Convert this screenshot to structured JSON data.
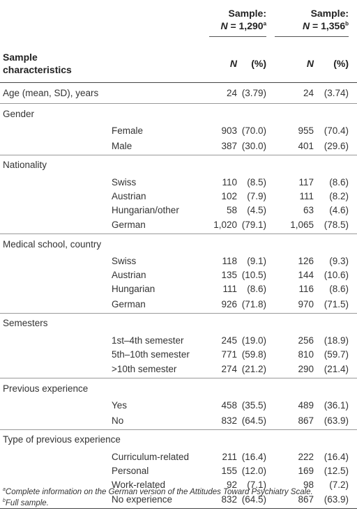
{
  "header": {
    "group1_line1": "Sample:",
    "group1_n": "N",
    "group1_value": " = 1,290",
    "group1_sup": "a",
    "group2_line1": "Sample:",
    "group2_n": "N",
    "group2_value": " = 1,356",
    "group2_sup": "b",
    "row_label_line1": "Sample",
    "row_label_line2": "characteristics",
    "col_n": "N",
    "col_pct": "(%)"
  },
  "age": {
    "label": "Age (mean, SD), years",
    "n1": "24",
    "p1": "(3.79)",
    "n2": "24",
    "p2": "(3.74)"
  },
  "sections": [
    {
      "label": "Gender",
      "rows": [
        {
          "label": "Female",
          "n1": "903",
          "p1": "(70.0)",
          "n2": "955",
          "p2": "(70.4)"
        },
        {
          "label": "Male",
          "n1": "387",
          "p1": "(30.0)",
          "n2": "401",
          "p2": "(29.6)"
        }
      ]
    },
    {
      "label": "Nationality",
      "rows": [
        {
          "label": "Swiss",
          "n1": "110",
          "p1": "(8.5)",
          "n2": "117",
          "p2": "(8.6)"
        },
        {
          "label": "Austrian",
          "n1": "102",
          "p1": "(7.9)",
          "n2": "111",
          "p2": "(8.2)"
        },
        {
          "label": "Hungarian/other",
          "n1": "58",
          "p1": "(4.5)",
          "n2": "63",
          "p2": "(4.6)"
        },
        {
          "label": "German",
          "n1": "1,020",
          "p1": "(79.1)",
          "n2": "1,065",
          "p2": "(78.5)"
        }
      ]
    },
    {
      "label": "Medical school, country",
      "rows": [
        {
          "label": "Swiss",
          "n1": "118",
          "p1": "(9.1)",
          "n2": "126",
          "p2": "(9.3)"
        },
        {
          "label": "Austrian",
          "n1": "135",
          "p1": "(10.5)",
          "n2": "144",
          "p2": "(10.6)"
        },
        {
          "label": "Hungarian",
          "n1": "111",
          "p1": "(8.6)",
          "n2": "116",
          "p2": "(8.6)"
        },
        {
          "label": "German",
          "n1": "926",
          "p1": "(71.8)",
          "n2": "970",
          "p2": "(71.5)"
        }
      ]
    },
    {
      "label": "Semesters",
      "rows": [
        {
          "label": "1st–4th semester",
          "n1": "245",
          "p1": "(19.0)",
          "n2": "256",
          "p2": "(18.9)"
        },
        {
          "label": "5th–10th semester",
          "n1": "771",
          "p1": "(59.8)",
          "n2": "810",
          "p2": "(59.7)"
        },
        {
          "label": ">10th semester",
          "n1": "274",
          "p1": "(21.2)",
          "n2": "290",
          "p2": "(21.4)"
        }
      ]
    },
    {
      "label": "Previous experience",
      "rows": [
        {
          "label": "Yes",
          "n1": "458",
          "p1": "(35.5)",
          "n2": "489",
          "p2": "(36.1)"
        },
        {
          "label": "No",
          "n1": "832",
          "p1": "(64.5)",
          "n2": "867",
          "p2": "(63.9)"
        }
      ]
    },
    {
      "label": "Type of previous experience",
      "rows": [
        {
          "label": "Curriculum-related",
          "n1": "211",
          "p1": "(16.4)",
          "n2": "222",
          "p2": "(16.4)"
        },
        {
          "label": "Personal",
          "n1": "155",
          "p1": "(12.0)",
          "n2": "169",
          "p2": "(12.5)"
        },
        {
          "label": "Work-related",
          "n1": "92",
          "p1": "(7.1)",
          "n2": "98",
          "p2": "(7.2)"
        },
        {
          "label": "No experience",
          "n1": "832",
          "p1": "(64.5)",
          "n2": "867",
          "p2": "(63.9)"
        }
      ]
    }
  ],
  "footnotes": [
    {
      "mark": "a",
      "text": "Complete information on the German version of the Attitudes Toward Psychiatry Scale."
    },
    {
      "mark": "b",
      "text": "Full sample."
    }
  ]
}
